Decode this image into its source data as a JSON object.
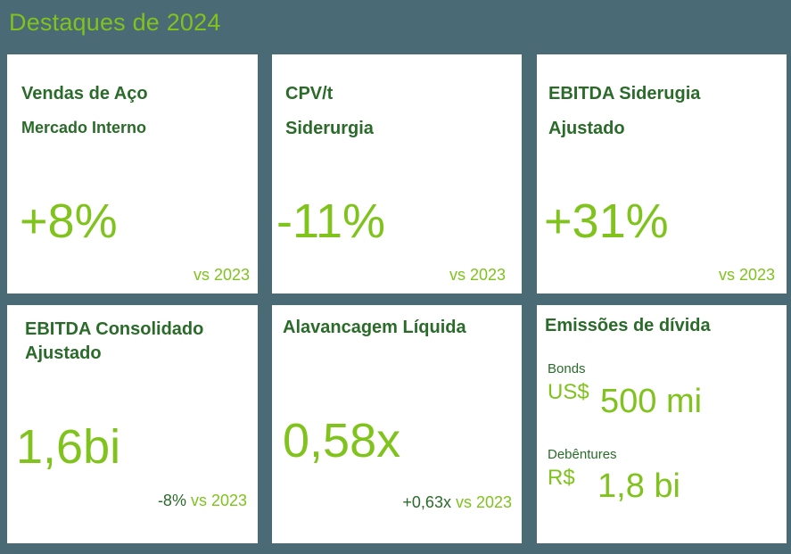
{
  "page": {
    "title": "Destaques de 2024"
  },
  "cards": [
    {
      "line1": "Vendas de Aço",
      "line2": "Mercado Interno",
      "value": "+8%",
      "comparison": "vs 2023"
    },
    {
      "line1": "CPV/t",
      "line2": "Siderurgia",
      "value": "-11%",
      "comparison": "vs 2023"
    },
    {
      "line1": "EBITDA Siderugia",
      "line2": "Ajustado",
      "value": "+31%",
      "comparison": "vs 2023"
    },
    {
      "line1": "EBITDA Consolidado",
      "line2": "Ajustado",
      "value": "1,6bi",
      "change": "-8%",
      "comparison": " vs 2023"
    },
    {
      "line1": "Alavancagem Líquida",
      "value": "0,58x",
      "change": "+0,63x",
      "comparison": " vs 2023"
    },
    {
      "line1": "Emissões de dívida",
      "bonds": {
        "label": "Bonds",
        "currency": "US$",
        "amount": "500 mi"
      },
      "debentures": {
        "label": "Debêntures",
        "currency": "R$",
        "amount": "1,8 bi"
      }
    }
  ],
  "colors": {
    "background": "#4a6a76",
    "accent": "#7fc31c",
    "dark_green": "#2a6b2a",
    "card": "#ffffff"
  }
}
